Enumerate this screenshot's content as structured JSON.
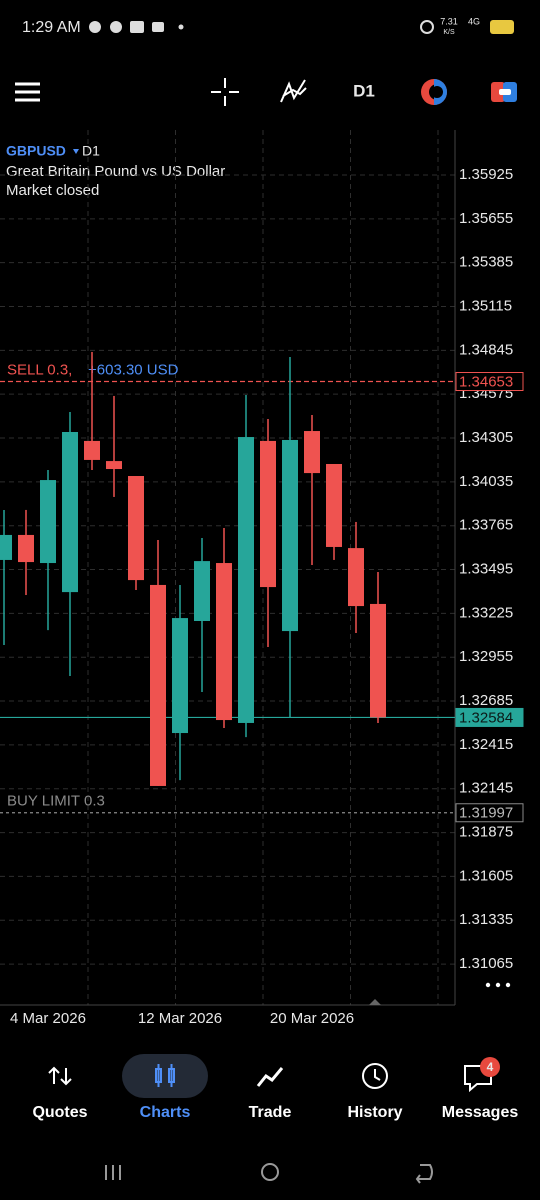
{
  "status_bar": {
    "time": "1:29 AM",
    "speed": "7.31",
    "speed_unit": "K/S",
    "network": "4G"
  },
  "toolbar": {
    "timeframe": "D1"
  },
  "chart_data": {
    "type": "candlestick",
    "symbol": "GBPUSD",
    "timeframe": "D1",
    "description": "Great Britain Pound vs US Dollar",
    "status": "Market closed",
    "categories": [
      null,
      null,
      "4 Mar 2026",
      null,
      null,
      null,
      null,
      null,
      "12 Mar 2026",
      null,
      null,
      null,
      null,
      null,
      "20 Mar 2026",
      null,
      null,
      null
    ],
    "open": [
      1.33554,
      1.33708,
      1.33535,
      1.33356,
      1.34287,
      1.34163,
      1.34071,
      1.334,
      1.32488,
      1.33178,
      1.33535,
      1.3255,
      1.34287,
      1.33116,
      1.34348,
      1.34145,
      1.33627,
      1.33283
    ],
    "high": [
      1.33862,
      1.33862,
      1.34108,
      1.34465,
      1.34835,
      1.34564,
      1.34071,
      1.33677,
      1.334,
      1.33689,
      1.33751,
      1.3457,
      1.34422,
      1.34804,
      1.34447,
      1.34145,
      1.33788,
      1.3348
    ],
    "low": [
      1.3303,
      1.33338,
      1.33122,
      1.32839,
      1.34108,
      1.33942,
      1.33369,
      1.32162,
      1.32198,
      1.32741,
      1.32519,
      1.32463,
      1.33018,
      1.32587,
      1.33523,
      1.33554,
      1.33104,
      1.3255
    ],
    "close": [
      1.33708,
      1.33541,
      1.34046,
      1.34342,
      1.3417,
      1.34114,
      1.3343,
      1.32162,
      1.33196,
      1.33547,
      1.32568,
      1.34311,
      1.33387,
      1.34293,
      1.34089,
      1.33634,
      1.3327,
      1.32584
    ],
    "up_color": "#26a69a",
    "down_color": "#ef5350",
    "ylim": [
      1.30813,
      1.36202
    ],
    "yticks": [
      1.35925,
      1.35655,
      1.35385,
      1.35115,
      1.34845,
      1.34575,
      1.34305,
      1.34035,
      1.33765,
      1.33495,
      1.33225,
      1.32955,
      1.32685,
      1.32415,
      1.32145,
      1.31875,
      1.31605,
      1.31335,
      1.31065
    ],
    "grid": true,
    "sell_order": {
      "label": "SELL 0.3,",
      "profit": "+603.30 USD",
      "value": 1.34653,
      "color": "#ef5350"
    },
    "current_price": {
      "value": 1.32584,
      "color": "#26a69a"
    },
    "buy_limit": {
      "label": "BUY LIMIT 0.3",
      "value": 1.31997,
      "color": "#8a8a8a"
    }
  },
  "nav": {
    "items": [
      {
        "label": "Quotes"
      },
      {
        "label": "Charts"
      },
      {
        "label": "Trade"
      },
      {
        "label": "History"
      },
      {
        "label": "Messages"
      }
    ],
    "messages_badge": 4
  }
}
